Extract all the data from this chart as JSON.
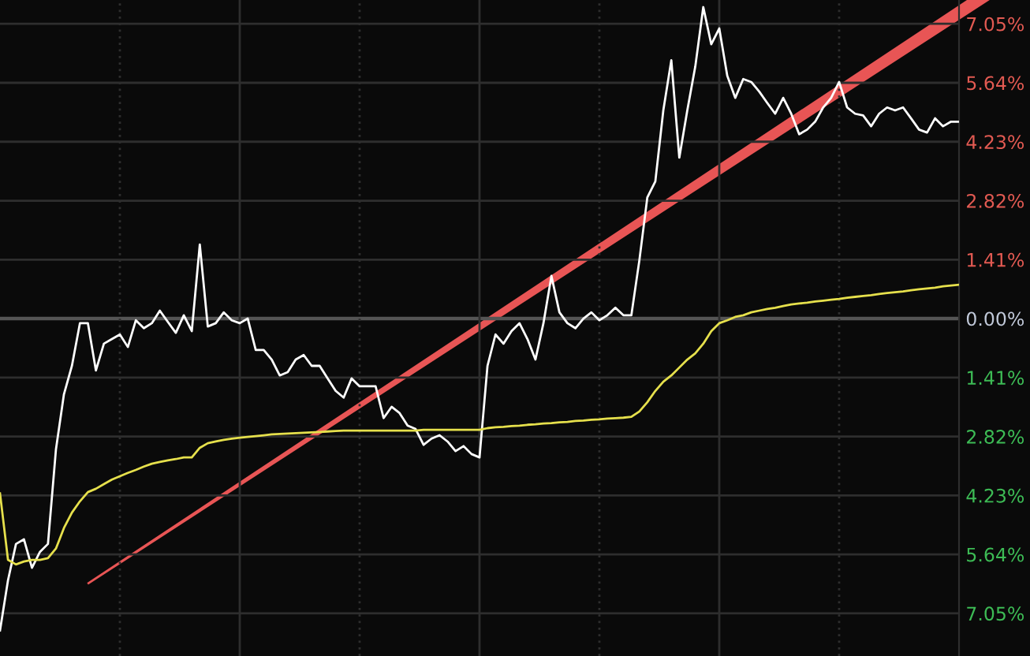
{
  "chart_data": {
    "type": "line",
    "categories": [
      null,
      null,
      null,
      null,
      null,
      null,
      null,
      null,
      null,
      null,
      null,
      null,
      null,
      null,
      null,
      null,
      null,
      null,
      null,
      null,
      null,
      null,
      null,
      null,
      null,
      null,
      null,
      null,
      null,
      null,
      null,
      null,
      null,
      null,
      null,
      null,
      null,
      null,
      null,
      null,
      null,
      null,
      null,
      null,
      null,
      null,
      null,
      null,
      null,
      null,
      null,
      null,
      null,
      null,
      null,
      null,
      null,
      null,
      null,
      null,
      null,
      null,
      null,
      null,
      null,
      null,
      null,
      null,
      null,
      null,
      null,
      null,
      null,
      null,
      null,
      null,
      null,
      null,
      null,
      null,
      null,
      null,
      null,
      null,
      null,
      null,
      null,
      null,
      null,
      null,
      null,
      null,
      null,
      null,
      null,
      null,
      null,
      null,
      null,
      null,
      null,
      null,
      null,
      null,
      null,
      null,
      null,
      null,
      null,
      null,
      null,
      null,
      null,
      null,
      null,
      null,
      null,
      null,
      null,
      null,
      null
    ],
    "series": [
      {
        "color": "#ffffff",
        "values": [
          -7.46,
          -6.26,
          -5.39,
          -5.28,
          -5.96,
          -5.58,
          -5.39,
          -3.13,
          -1.81,
          -1.13,
          -0.11,
          -0.11,
          -1.24,
          -0.6,
          -0.49,
          -0.38,
          -0.68,
          -0.04,
          -0.23,
          -0.11,
          0.19,
          -0.08,
          -0.34,
          0.08,
          -0.3,
          1.77,
          -0.19,
          -0.11,
          0.15,
          -0.04,
          -0.11,
          0.0,
          -0.75,
          -0.75,
          -0.98,
          -1.36,
          -1.28,
          -0.98,
          -0.87,
          -1.13,
          -1.13,
          -1.43,
          -1.73,
          -1.89,
          -1.43,
          -1.62,
          -1.62,
          -1.62,
          -2.38,
          -2.11,
          -2.26,
          -2.56,
          -2.64,
          -3.02,
          -2.87,
          -2.79,
          -2.94,
          -3.17,
          -3.05,
          -3.24,
          -3.32,
          -1.13,
          -0.38,
          -0.6,
          -0.3,
          -0.11,
          -0.49,
          -0.98,
          -0.11,
          1.02,
          0.15,
          -0.11,
          -0.23,
          0.0,
          0.15,
          -0.04,
          0.08,
          0.26,
          0.08,
          0.08,
          1.39,
          2.9,
          3.28,
          4.98,
          6.18,
          3.85,
          4.98,
          6.03,
          7.45,
          6.56,
          6.94,
          5.81,
          5.28,
          5.73,
          5.66,
          5.43,
          5.16,
          4.9,
          5.28,
          4.9,
          4.41,
          4.52,
          4.71,
          5.05,
          5.28,
          5.66,
          5.05,
          4.9,
          4.86,
          4.6,
          4.9,
          5.05,
          4.98,
          5.05,
          4.79,
          4.52,
          4.45,
          4.79,
          4.6,
          4.71,
          4.71
        ]
      },
      {
        "color": "#e6e04c",
        "values": [
          -4.18,
          -5.77,
          -5.88,
          -5.81,
          -5.77,
          -5.77,
          -5.73,
          -5.5,
          -5.01,
          -4.64,
          -4.37,
          -4.15,
          -4.07,
          -3.96,
          -3.85,
          -3.77,
          -3.69,
          -3.62,
          -3.54,
          -3.47,
          -3.43,
          -3.39,
          -3.36,
          -3.32,
          -3.32,
          -3.09,
          -2.98,
          -2.94,
          -2.9,
          -2.87,
          -2.85,
          -2.83,
          -2.81,
          -2.79,
          -2.77,
          -2.76,
          -2.75,
          -2.74,
          -2.73,
          -2.72,
          -2.71,
          -2.7,
          -2.69,
          -2.68,
          -2.68,
          -2.68,
          -2.68,
          -2.68,
          -2.68,
          -2.68,
          -2.68,
          -2.68,
          -2.68,
          -2.66,
          -2.66,
          -2.66,
          -2.66,
          -2.66,
          -2.66,
          -2.66,
          -2.66,
          -2.62,
          -2.6,
          -2.59,
          -2.57,
          -2.56,
          -2.54,
          -2.53,
          -2.51,
          -2.5,
          -2.48,
          -2.47,
          -2.45,
          -2.44,
          -2.42,
          -2.41,
          -2.39,
          -2.38,
          -2.37,
          -2.35,
          -2.22,
          -2.0,
          -1.73,
          -1.51,
          -1.36,
          -1.17,
          -0.98,
          -0.83,
          -0.6,
          -0.3,
          -0.11,
          -0.04,
          0.04,
          0.08,
          0.15,
          0.19,
          0.23,
          0.26,
          0.3,
          0.34,
          0.36,
          0.38,
          0.41,
          0.43,
          0.45,
          0.47,
          0.5,
          0.52,
          0.54,
          0.56,
          0.59,
          0.61,
          0.63,
          0.65,
          0.68,
          0.7,
          0.72,
          0.74,
          0.77,
          0.79,
          0.81
        ]
      }
    ],
    "ylim": [
      -8.07,
      7.62
    ],
    "yticks": [
      {
        "value": 7.05,
        "label": "7.05%"
      },
      {
        "value": 5.64,
        "label": "5.64%"
      },
      {
        "value": 4.23,
        "label": "4.23%"
      },
      {
        "value": 2.82,
        "label": "2.82%"
      },
      {
        "value": 1.41,
        "label": "1.41%"
      },
      {
        "value": 0,
        "label": "0.00%"
      },
      {
        "value": -1.41,
        "label": "1.41%"
      },
      {
        "value": -2.82,
        "label": "2.82%"
      },
      {
        "value": -4.23,
        "label": "4.23%"
      },
      {
        "value": -5.64,
        "label": "5.64%"
      },
      {
        "value": -7.05,
        "label": "7.05%"
      }
    ],
    "grid": true,
    "tick_labels": "y"
  }
}
